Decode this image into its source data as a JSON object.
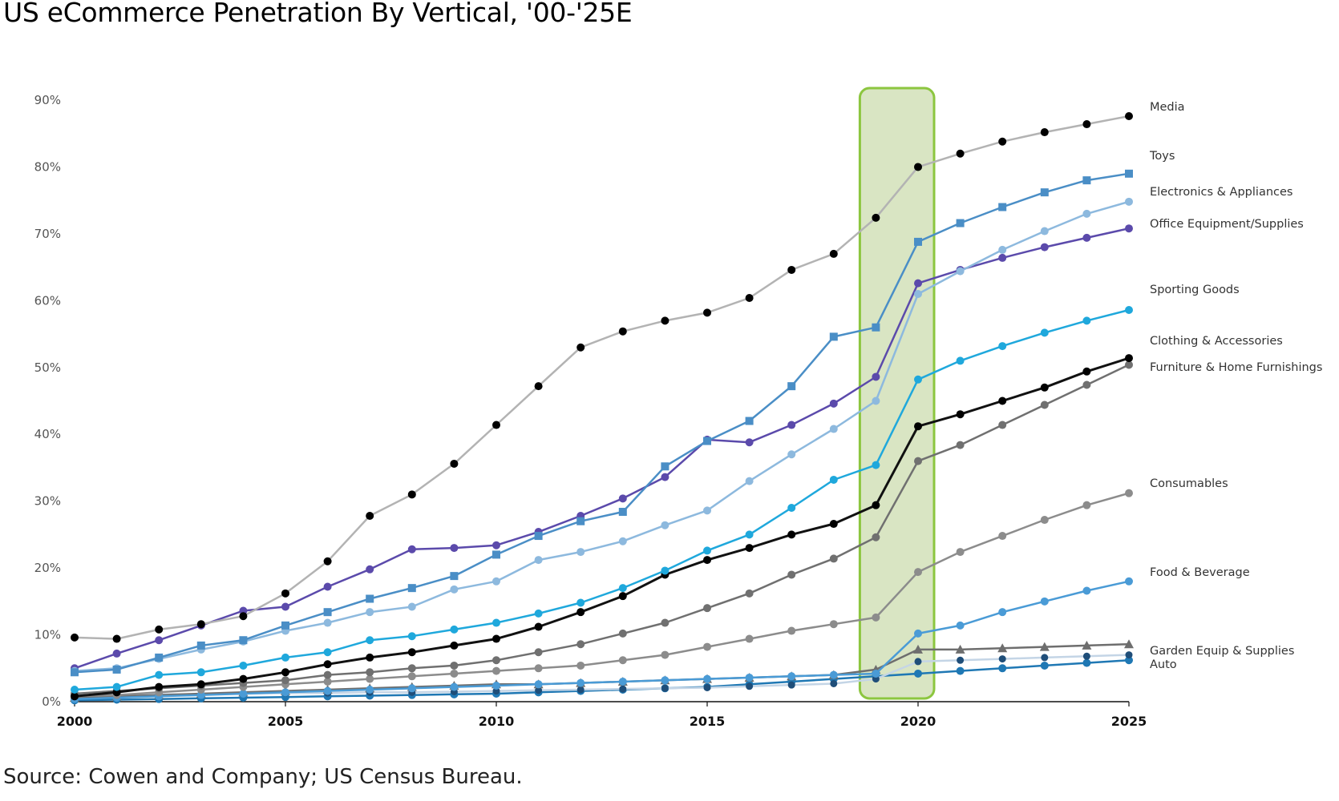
{
  "title": "US eCommerce Penetration By Vertical, '00-'25E",
  "source": "Source: Cowen and Company; US Census Bureau.",
  "colors": {
    "highlight_fill": "#d9e5c3",
    "highlight_stroke": "#8cc63f",
    "axis": "#111111"
  },
  "chart_data": {
    "type": "line",
    "title": "US eCommerce Penetration By Vertical, '00-'25E",
    "x_ticks": [
      "2000",
      "2005",
      "2010",
      "2015",
      "2020",
      "2025"
    ],
    "y_ticks": [
      "0%",
      "10%",
      "20%",
      "30%",
      "40%",
      "50%",
      "60%",
      "70%",
      "80%",
      "90%"
    ],
    "xlim": [
      2000,
      2025
    ],
    "ylim": [
      0,
      90
    ],
    "grid": false,
    "legend": "labels at right end of lines",
    "highlight_range": [
      2019,
      2020
    ],
    "x": [
      2000,
      2001,
      2002,
      2003,
      2004,
      2005,
      2006,
      2007,
      2008,
      2009,
      2010,
      2011,
      2012,
      2013,
      2014,
      2015,
      2016,
      2017,
      2018,
      2019,
      2020,
      2021,
      2022,
      2023,
      2024,
      2025
    ],
    "series": [
      {
        "name": "Media",
        "line_color": "#b3b3b3",
        "marker_color": "#000000",
        "marker": "circle",
        "values": [
          9.6,
          9.4,
          10.8,
          11.6,
          12.8,
          16.2,
          21.0,
          27.8,
          31.0,
          35.6,
          41.4,
          47.2,
          53.0,
          55.4,
          57.0,
          58.2,
          60.4,
          64.6,
          67.0,
          72.4,
          80.0,
          82.0,
          83.8,
          85.2,
          86.4,
          87.6
        ]
      },
      {
        "name": "Toys",
        "line_color": "#4a8ec6",
        "marker_color": "#4a8ec6",
        "marker": "square",
        "values": [
          4.4,
          4.8,
          6.6,
          8.4,
          9.2,
          11.4,
          13.4,
          15.4,
          17.0,
          18.8,
          22.0,
          24.8,
          27.0,
          28.4,
          35.2,
          39.0,
          42.0,
          47.2,
          54.6,
          56.0,
          68.8,
          71.6,
          74.0,
          76.2,
          78.0,
          79.0
        ]
      },
      {
        "name": "Electronics & Appliances",
        "line_color": "#8db9de",
        "marker_color": "#8db9de",
        "marker": "circle",
        "values": [
          4.6,
          5.0,
          6.4,
          7.8,
          9.0,
          10.6,
          11.8,
          13.4,
          14.2,
          16.8,
          18.0,
          21.2,
          22.4,
          24.0,
          26.4,
          28.6,
          33.0,
          37.0,
          40.8,
          45.0,
          61.0,
          64.4,
          67.6,
          70.4,
          73.0,
          74.8
        ]
      },
      {
        "name": "Office Equipment/Supplies",
        "line_color": "#5b4aab",
        "marker_color": "#5b4aab",
        "marker": "circle",
        "values": [
          5.0,
          7.2,
          9.2,
          11.4,
          13.6,
          14.2,
          17.2,
          19.8,
          22.8,
          23.0,
          23.4,
          25.4,
          27.8,
          30.4,
          33.6,
          39.2,
          38.8,
          41.4,
          44.6,
          48.6,
          62.6,
          64.6,
          66.4,
          68.0,
          69.4,
          70.8
        ]
      },
      {
        "name": "Sporting Goods",
        "line_color": "#1fa8dc",
        "marker_color": "#1fa8dc",
        "marker": "circle",
        "values": [
          1.8,
          2.2,
          4.0,
          4.4,
          5.4,
          6.6,
          7.4,
          9.2,
          9.8,
          10.8,
          11.8,
          13.2,
          14.8,
          17.0,
          19.6,
          22.6,
          25.0,
          29.0,
          33.2,
          35.4,
          48.2,
          51.0,
          53.2,
          55.2,
          57.0,
          58.6
        ]
      },
      {
        "name": "Clothing & Accessories",
        "line_color": "#111111",
        "marker_color": "#000000",
        "marker": "circle",
        "values": [
          0.8,
          1.4,
          2.2,
          2.6,
          3.4,
          4.4,
          5.6,
          6.6,
          7.4,
          8.4,
          9.4,
          11.2,
          13.4,
          15.8,
          19.0,
          21.2,
          23.0,
          25.0,
          26.6,
          29.4,
          41.2,
          43.0,
          45.0,
          47.0,
          49.4,
          51.4
        ]
      },
      {
        "name": "Furniture & Home Furnishings",
        "line_color": "#707070",
        "marker_color": "#707070",
        "marker": "circle",
        "values": [
          1.2,
          1.6,
          2.0,
          2.4,
          2.8,
          3.2,
          4.0,
          4.4,
          5.0,
          5.4,
          6.2,
          7.4,
          8.6,
          10.2,
          11.8,
          14.0,
          16.2,
          19.0,
          21.4,
          24.6,
          36.0,
          38.4,
          41.4,
          44.4,
          47.4,
          50.4
        ]
      },
      {
        "name": "Consumables",
        "line_color": "#8c8c8c",
        "marker_color": "#8c8c8c",
        "marker": "circle",
        "values": [
          0.8,
          1.0,
          1.4,
          1.8,
          2.2,
          2.6,
          3.0,
          3.4,
          3.8,
          4.2,
          4.6,
          5.0,
          5.4,
          6.2,
          7.0,
          8.2,
          9.4,
          10.6,
          11.6,
          12.6,
          19.4,
          22.4,
          24.8,
          27.2,
          29.4,
          31.2
        ]
      },
      {
        "name": "Food & Beverage",
        "line_color": "#4a9bd6",
        "marker_color": "#4a9bd6",
        "marker": "circle",
        "values": [
          0.4,
          0.6,
          0.8,
          1.0,
          1.2,
          1.4,
          1.6,
          1.8,
          2.0,
          2.2,
          2.4,
          2.6,
          2.8,
          3.0,
          3.2,
          3.4,
          3.6,
          3.8,
          4.0,
          4.2,
          10.2,
          11.4,
          13.4,
          15.0,
          16.6,
          18.0
        ]
      },
      {
        "name": "Garden Equip & Supplies",
        "line_color": "#6e6e6e",
        "marker_color": "#6e6e6e",
        "marker": "triangle",
        "values": [
          0.6,
          0.8,
          1.0,
          1.2,
          1.4,
          1.6,
          1.8,
          2.0,
          2.2,
          2.4,
          2.6,
          2.6,
          2.8,
          3.0,
          3.2,
          3.4,
          3.6,
          3.8,
          4.0,
          4.8,
          7.8,
          7.8,
          8.0,
          8.2,
          8.4,
          8.6
        ]
      },
      {
        "name": "",
        "line_color": "#c4d5e6",
        "marker_color": "#1f4e79",
        "marker": "dot-only",
        "values": [
          1.0,
          1.0,
          1.1,
          1.1,
          1.2,
          1.3,
          1.3,
          1.4,
          1.4,
          1.5,
          1.6,
          1.7,
          1.8,
          1.9,
          2.0,
          2.1,
          2.3,
          2.5,
          2.7,
          3.4,
          6.0,
          6.2,
          6.4,
          6.6,
          6.8,
          7.0
        ]
      },
      {
        "name": "Auto",
        "line_color": "#1f78b4",
        "marker_color": "#1f78b4",
        "marker": "circle",
        "values": [
          0.2,
          0.3,
          0.4,
          0.5,
          0.6,
          0.7,
          0.8,
          0.9,
          1.0,
          1.1,
          1.2,
          1.4,
          1.6,
          1.8,
          2.0,
          2.2,
          2.6,
          3.0,
          3.4,
          3.8,
          4.2,
          4.6,
          5.0,
          5.4,
          5.8,
          6.2
        ]
      }
    ]
  }
}
